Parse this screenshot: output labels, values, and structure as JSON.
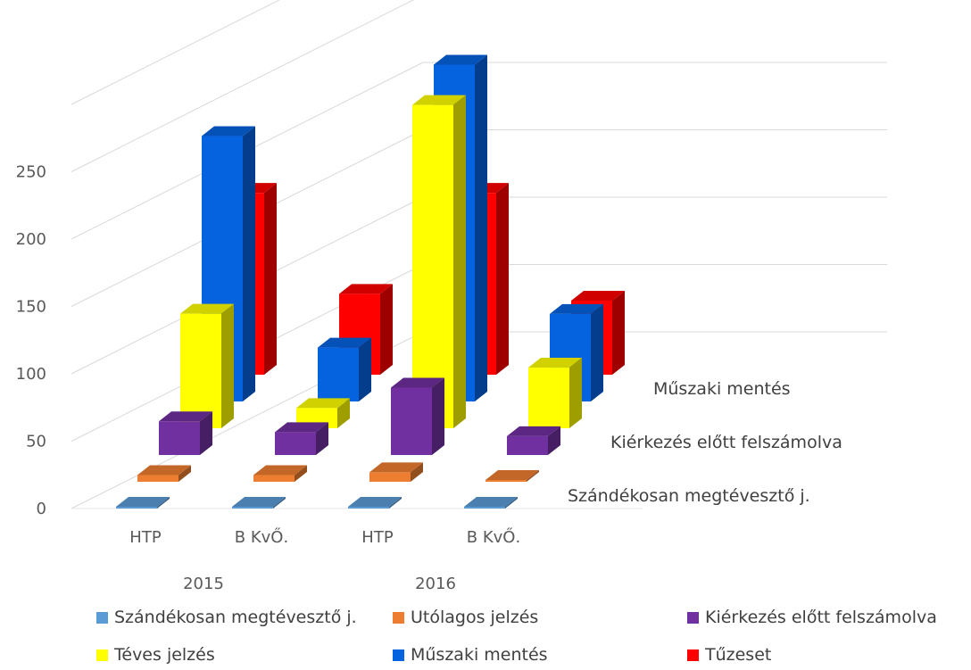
{
  "chart_data": {
    "type": "bar",
    "subtype": "3d-column",
    "title": "",
    "xlabel": "",
    "ylabel": "",
    "ylim": [
      0,
      300
    ],
    "y_ticks": [
      0,
      50,
      100,
      150,
      200,
      250
    ],
    "grid": true,
    "categories": [
      "HTP",
      "B KvŐ.",
      "HTP",
      "B KvŐ."
    ],
    "category_groups": [
      {
        "label": "2015",
        "span": 2
      },
      {
        "label": "2016",
        "span": 2
      }
    ],
    "depth_labels": [
      "Szándékosan megtévesztő j.",
      "Kiérkezés előtt felszámolva",
      "Műszaki mentés"
    ],
    "series": [
      {
        "name": "Szándékosan megtévesztő j.",
        "color": "#5B9BD5",
        "values": [
          1,
          1,
          1,
          1
        ]
      },
      {
        "name": "Utólagos jelzés",
        "color": "#ED7D31",
        "values": [
          5,
          5,
          7,
          1
        ]
      },
      {
        "name": "Kiérkezés előtt felszámolva",
        "color": "#7030A0",
        "values": [
          25,
          17,
          50,
          14
        ]
      },
      {
        "name": "Téves jelzés",
        "color": "#FFFF00",
        "values": [
          85,
          15,
          240,
          45
        ]
      },
      {
        "name": "Műszaki mentés",
        "color": "#0563E0",
        "values": [
          197,
          40,
          250,
          65
        ]
      },
      {
        "name": "Tűzeset",
        "color": "#FF0000",
        "values": [
          135,
          60,
          135,
          55
        ]
      }
    ],
    "legend": {
      "position": "bottom"
    }
  }
}
